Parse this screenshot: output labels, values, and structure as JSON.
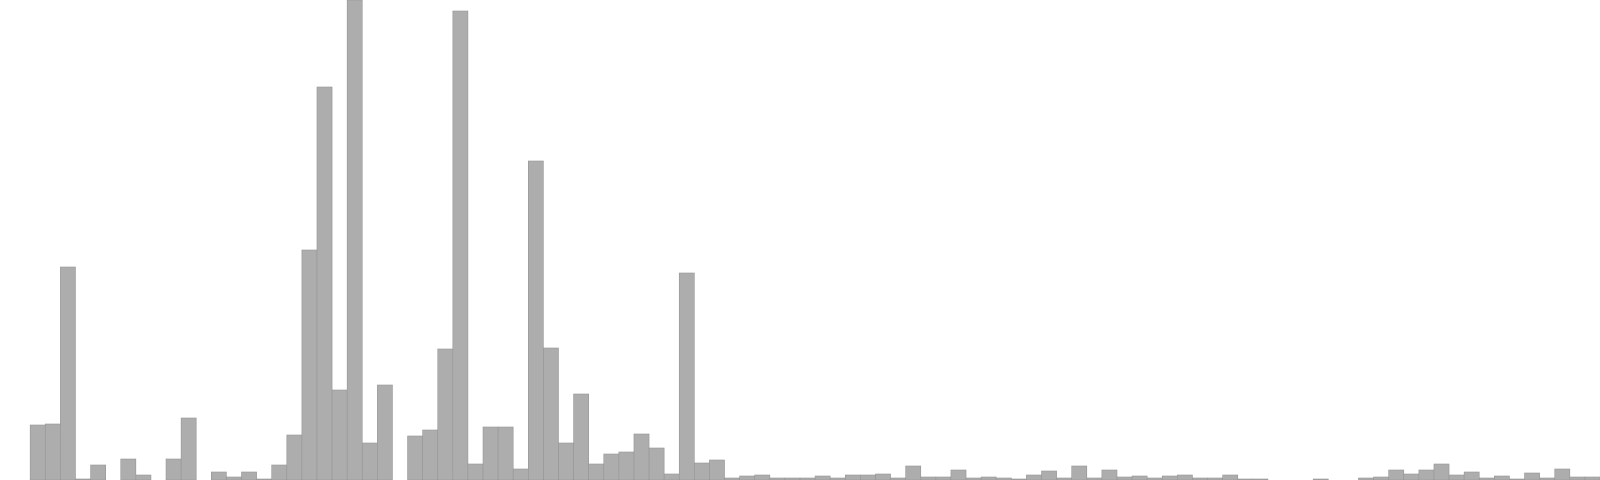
{
  "chart_data": {
    "type": "bar",
    "title": "",
    "xlabel": "",
    "ylabel": "",
    "ylim": [
      0,
      480
    ],
    "grid": false,
    "legend": "none",
    "bar_color": "#adadad",
    "values": [
      0,
      0,
      55,
      56,
      213,
      1,
      15,
      0,
      21,
      5,
      0,
      21,
      62,
      0,
      8,
      3,
      8,
      1,
      15,
      45,
      230,
      393,
      90,
      480,
      37,
      95,
      0,
      44,
      50,
      131,
      469,
      16,
      53,
      53,
      11,
      319,
      132,
      37,
      86,
      16,
      26,
      28,
      46,
      32,
      6,
      207,
      17,
      20,
      2,
      4,
      5,
      2,
      2,
      2,
      4,
      2,
      5,
      5,
      6,
      2,
      14,
      3,
      3,
      10,
      2,
      3,
      2,
      1,
      5,
      9,
      2,
      14,
      2,
      10,
      3,
      4,
      2,
      4,
      5,
      2,
      2,
      5,
      1,
      1,
      0,
      0,
      0,
      1,
      0,
      0,
      2,
      3,
      10,
      6,
      10,
      16,
      5,
      8,
      2,
      4,
      1,
      7,
      2,
      11,
      3,
      3
    ]
  }
}
